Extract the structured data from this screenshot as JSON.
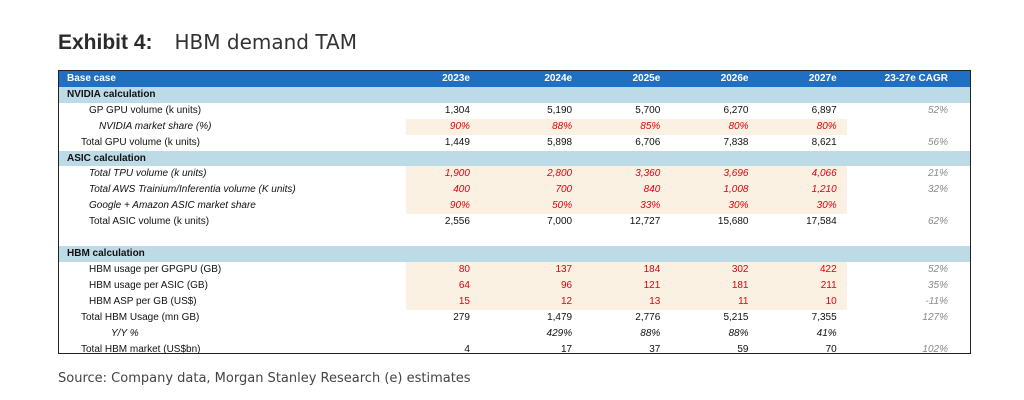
{
  "exhibit": {
    "label": "Exhibit 4:",
    "title": "HBM demand TAM"
  },
  "header": {
    "label": "Base case",
    "years": [
      "2023e",
      "2024e",
      "2025e",
      "2026e",
      "2027e"
    ],
    "cagr": "23-27e CAGR"
  },
  "sections": {
    "nvidia": "NVIDIA calculation",
    "asic": "ASIC calculation",
    "hbm": "HBM calculation"
  },
  "rows": {
    "gp_gpu": {
      "label": "GP GPU volume (k units)",
      "values": [
        "1,304",
        "5,190",
        "5,700",
        "6,270",
        "6,897"
      ],
      "cagr": "52%"
    },
    "nv_share": {
      "label": "NVIDIA market share (%)",
      "values": [
        "90%",
        "88%",
        "85%",
        "80%",
        "80%"
      ],
      "cagr": ""
    },
    "total_gpu": {
      "label": "Total GPU volume (k units)",
      "values": [
        "1,449",
        "5,898",
        "6,706",
        "7,838",
        "8,621"
      ],
      "cagr": "56%"
    },
    "tpu": {
      "label": "Total TPU volume (k units)",
      "values": [
        "1,900",
        "2,800",
        "3,360",
        "3,696",
        "4,066"
      ],
      "cagr": "21%"
    },
    "aws": {
      "label": "Total AWS Trainium/Inferentia volume (K units)",
      "values": [
        "400",
        "700",
        "840",
        "1,008",
        "1,210"
      ],
      "cagr": "32%"
    },
    "asic_share": {
      "label": "Google + Amazon ASIC market share",
      "values": [
        "90%",
        "50%",
        "33%",
        "30%",
        "30%"
      ],
      "cagr": ""
    },
    "total_asic": {
      "label": "Total ASIC volume (k units)",
      "values": [
        "2,556",
        "7,000",
        "12,727",
        "15,680",
        "17,584"
      ],
      "cagr": "62%"
    },
    "hbm_gpgpu": {
      "label": "HBM usage per GPGPU (GB)",
      "values": [
        "80",
        "137",
        "184",
        "302",
        "422"
      ],
      "cagr": "52%"
    },
    "hbm_asic": {
      "label": "HBM usage per ASIC (GB)",
      "values": [
        "64",
        "96",
        "121",
        "181",
        "211"
      ],
      "cagr": "35%"
    },
    "hbm_asp": {
      "label": "HBM ASP per GB (US$)",
      "values": [
        "15",
        "12",
        "13",
        "11",
        "10"
      ],
      "cagr": "-11%"
    },
    "hbm_usage": {
      "label": "Total HBM Usage (mn GB)",
      "values": [
        "279",
        "1,479",
        "2,776",
        "5,215",
        "7,355"
      ],
      "cagr": "127%"
    },
    "yoy": {
      "label": "Y/Y %",
      "values": [
        "",
        "429%",
        "88%",
        "88%",
        "41%"
      ],
      "cagr": ""
    },
    "hbm_market": {
      "label": "Total HBM market (US$bn)",
      "values": [
        "4",
        "17",
        "37",
        "59",
        "70"
      ],
      "cagr": "102%"
    }
  },
  "colors": {
    "header_blue": "#1f6fc5",
    "section_blue": "#bcdbe6",
    "input_red": "#e0000e",
    "input_shade": "#fbf1e3"
  },
  "source": "Source: Company data, Morgan Stanley Research (e) estimates"
}
